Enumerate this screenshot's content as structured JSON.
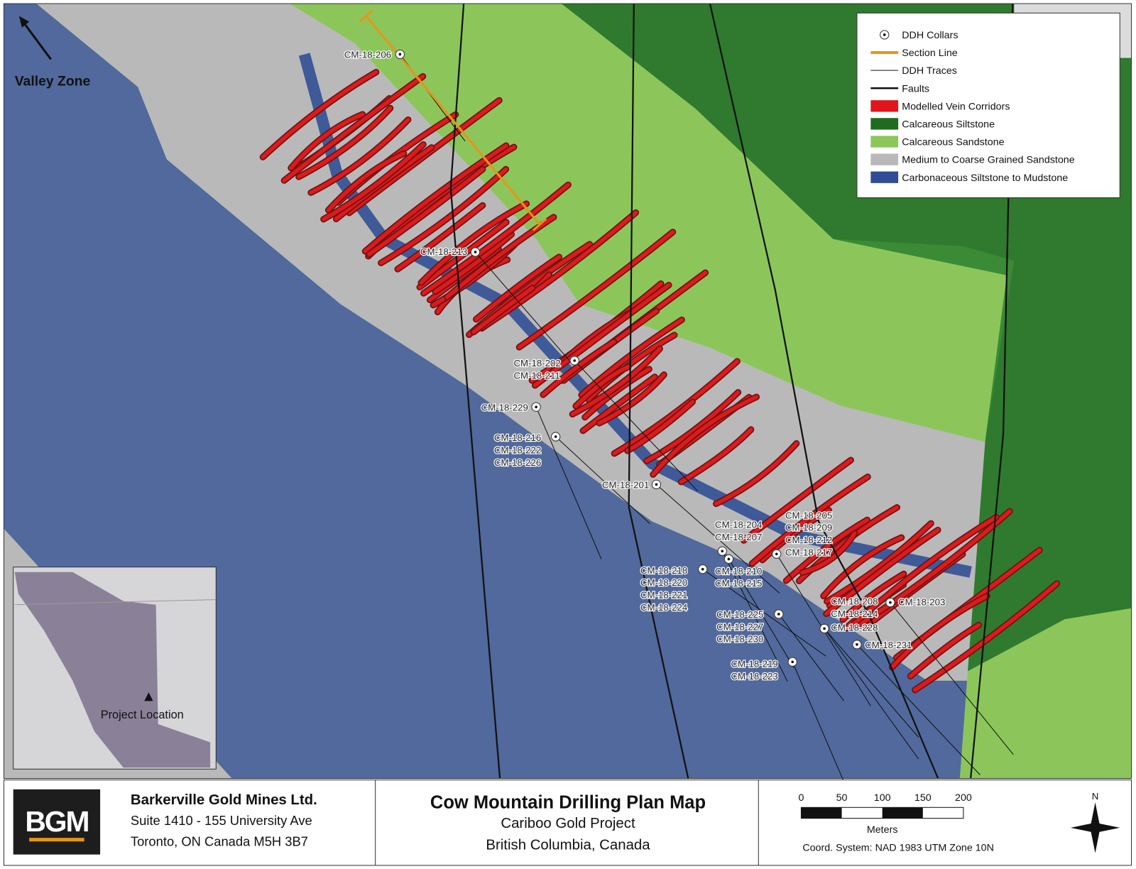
{
  "map": {
    "zone_label": "Valley Zone",
    "inset_label": "Project Location",
    "collars": [
      [
        "CM-18-206"
      ],
      [
        "CM-18-213"
      ],
      [
        "CM-18-202",
        "CM-18-211"
      ],
      [
        "CM-18-229"
      ],
      [
        "CM-18-216",
        "CM-18-222",
        "CM-18-226"
      ],
      [
        "CM-18-201"
      ],
      [
        "CM-18-204",
        "CM-18-207"
      ],
      [
        "CM-18-205",
        "CM-18-209",
        "CM-18-212",
        "CM-18-217"
      ],
      [
        "CM-18-218",
        "CM-18-220",
        "CM-18-221",
        "CM-18-224"
      ],
      [
        "CM-18-210",
        "CM-18-215"
      ],
      [
        "CM-18-208",
        "CM-18-214"
      ],
      [
        "CM-18-203"
      ],
      [
        "CM-18-225",
        "CM-18-227",
        "CM-18-230"
      ],
      [
        "CM-18-228"
      ],
      [
        "CM-18-231"
      ],
      [
        "CM-18-219",
        "CM-18-223"
      ]
    ]
  },
  "legend": {
    "items": [
      "DDH Collars",
      "Section Line",
      "DDH Traces",
      "Faults",
      "Modelled Vein Corridors",
      "Calcareous Siltstone",
      "Calcareous Sandstone",
      "Medium to Coarse Grained Sandstone",
      "Carbonaceous Siltstone to Mudstone"
    ]
  },
  "footer": {
    "logo": "BGM",
    "company": "Barkerville Gold Mines Ltd.",
    "address1": "Suite 1410 - 155 University Ave",
    "address2": "Toronto, ON Canada M5H 3B7",
    "title": "Cow Mountain Drilling Plan Map",
    "subtitle1": "Cariboo Gold Project",
    "subtitle2": "British Columbia, Canada",
    "scale_ticks": [
      "0",
      "50",
      "100",
      "150",
      "200"
    ],
    "scale_unit": "Meters",
    "coord": "Coord. System: NAD 1983 UTM Zone 10N",
    "north": "N"
  }
}
